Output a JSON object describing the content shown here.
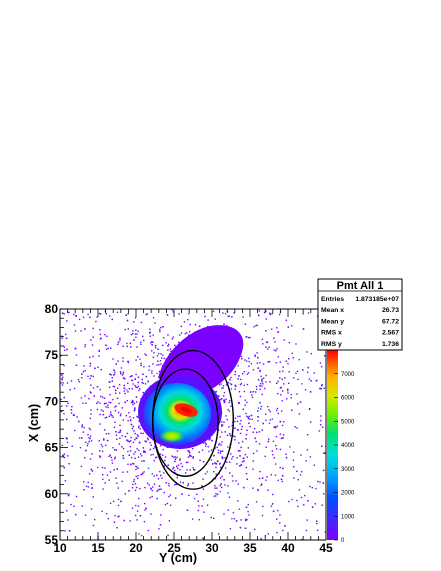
{
  "chart_data": {
    "type": "heatmap",
    "title": "",
    "xlabel": "Y (cm)",
    "ylabel": "X (cm)",
    "xlim": [
      10,
      45
    ],
    "ylim": [
      55,
      80
    ],
    "x_ticks": [
      "10",
      "15",
      "20",
      "25",
      "30",
      "35",
      "40",
      "45"
    ],
    "y_ticks": [
      "55",
      "60",
      "65",
      "70",
      "75",
      "80"
    ],
    "z_range": [
      0,
      8000
    ],
    "z_ticks": [
      "0",
      "1000",
      "2000",
      "3000",
      "4000",
      "5000",
      "6000",
      "7000"
    ],
    "palette": [
      "#7f00ff",
      "#3b2cff",
      "#0050ff",
      "#00a0ff",
      "#00e0d8",
      "#00e070",
      "#70f000",
      "#d8e800",
      "#ffb000",
      "#ff5000",
      "#ff0000"
    ],
    "stats": {
      "title": "Pmt All 1",
      "rows": [
        {
          "label": "Entries",
          "value": "1.873185e+07"
        },
        {
          "label": "Mean x",
          "value": "26.73"
        },
        {
          "label": "Mean y",
          "value": "67.72"
        },
        {
          "label": "RMS x",
          "value": "2.567"
        },
        {
          "label": "RMS y",
          "value": "1.736"
        }
      ]
    },
    "overlay_circles": [
      {
        "center": [
          27.5,
          68
        ],
        "radius_y": 7.5,
        "radius_x": 5.3
      },
      {
        "center": [
          26.5,
          67.7
        ],
        "radius_y": 5.8,
        "radius_x": 4.3
      }
    ],
    "hot_spots": [
      {
        "center": [
          27.3,
          68.7
        ],
        "z": 7600
      },
      {
        "center": [
          26.2,
          65.4
        ],
        "z": 4500
      }
    ]
  }
}
